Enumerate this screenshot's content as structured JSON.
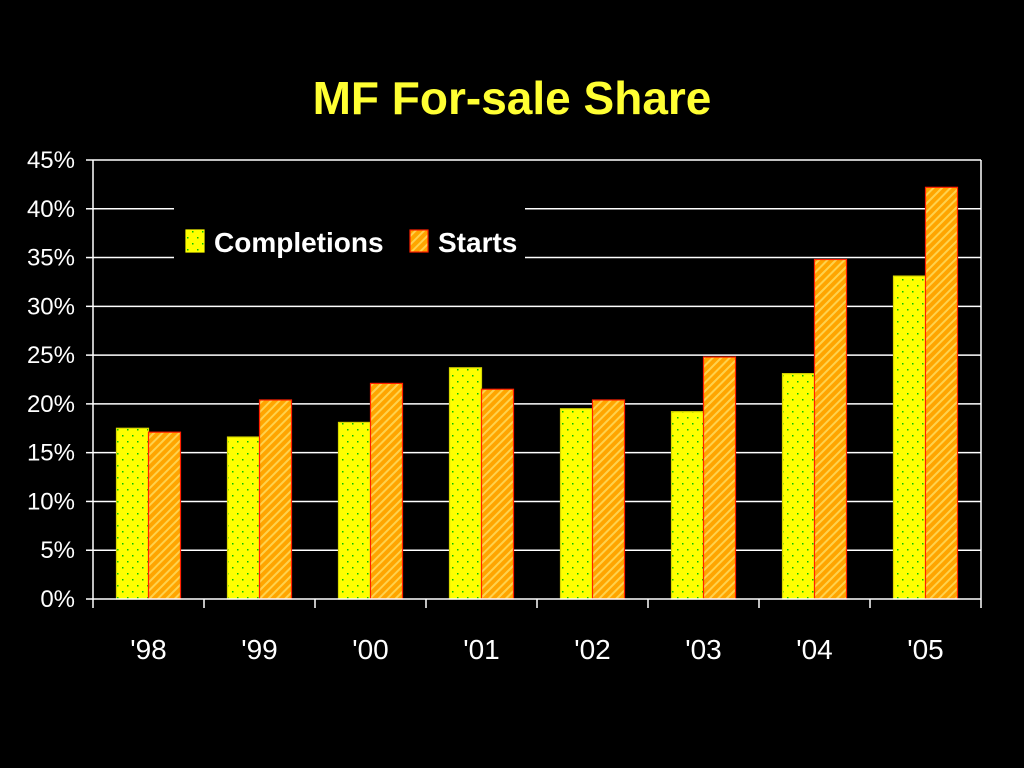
{
  "chart_data": {
    "type": "bar",
    "title": "MF For-sale Share",
    "categories": [
      "'98",
      "'99",
      "'00",
      "'01",
      "'02",
      "'03",
      "'04",
      "'05"
    ],
    "series": [
      {
        "name": "Completions",
        "values": [
          17.5,
          16.6,
          18.1,
          23.7,
          19.5,
          19.2,
          23.1,
          33.1
        ]
      },
      {
        "name": "Starts",
        "values": [
          17.1,
          20.4,
          22.1,
          21.5,
          20.4,
          24.8,
          34.8,
          42.2
        ]
      }
    ],
    "ylim": [
      0,
      45
    ],
    "ytick_step": 5,
    "ytick_labels": [
      "0%",
      "5%",
      "10%",
      "15%",
      "20%",
      "25%",
      "30%",
      "35%",
      "40%",
      "45%"
    ],
    "grid": true,
    "legend_position": "top-left"
  },
  "colors": {
    "background": "#000000",
    "title": "#ffff33",
    "completions_fill": "#ffff00",
    "completions_dots": "#00c000",
    "starts_fill": "#ffa500",
    "starts_hatch": "#ffd24d",
    "starts_border": "#ff2000",
    "axis": "#ffffff",
    "grid": "#ffffff"
  }
}
